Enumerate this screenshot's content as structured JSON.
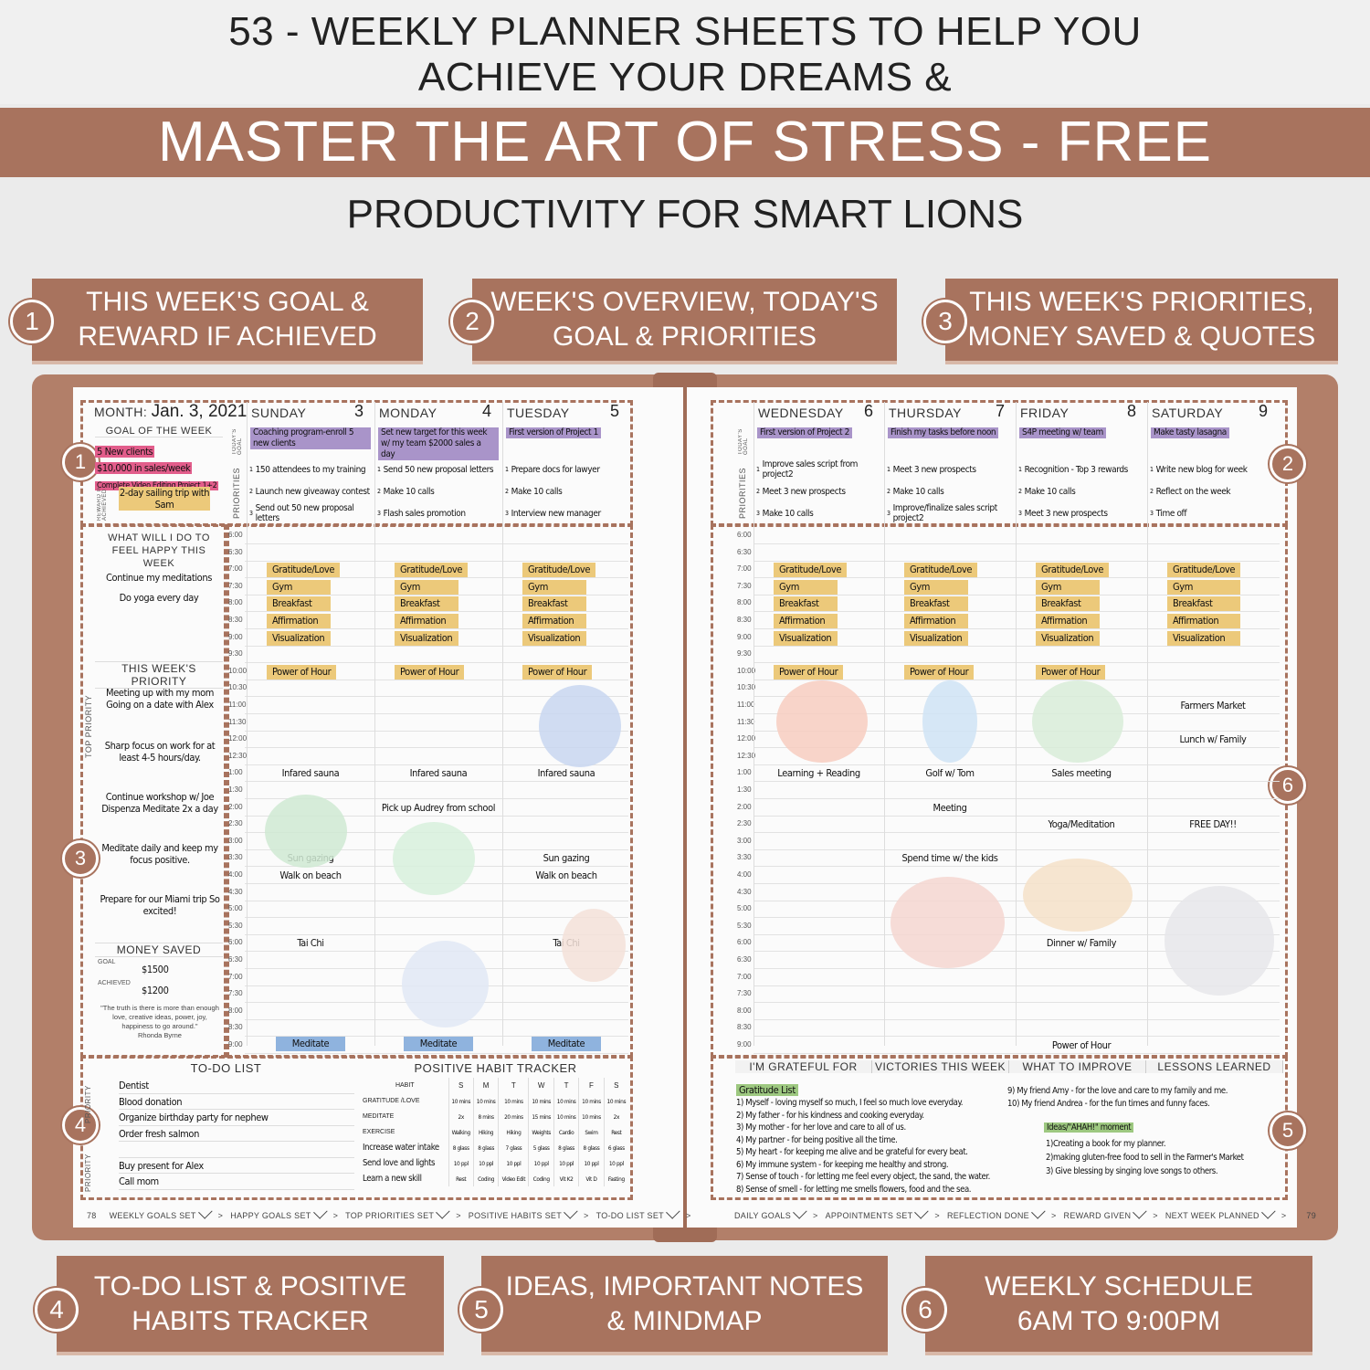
{
  "header": {
    "title_line1": "53 - WEEKLY PLANNER SHEETS TO HELP YOU",
    "title_line2": "ACHIEVE YOUR DREAMS &",
    "band": "MASTER THE ART OF STRESS - FREE",
    "subtitle": "PRODUCTIVITY FOR SMART LIONS"
  },
  "colors": {
    "accent": "#a8735e",
    "purple": "#a994c9",
    "yellow": "#ecc97a",
    "pink": "#e25d8b",
    "green": "#9dc880"
  },
  "callouts_top": [
    {
      "num": "1",
      "line1": "THIS WEEK'S GOAL &",
      "line2": "REWARD IF ACHIEVED"
    },
    {
      "num": "2",
      "line1": "WEEK'S OVERVIEW, TODAY'S",
      "line2": "GOAL & PRIORITIES"
    },
    {
      "num": "3",
      "line1": "THIS WEEK'S PRIORITIES,",
      "line2": "MONEY SAVED & QUOTES"
    }
  ],
  "callouts_bottom": [
    {
      "num": "4",
      "line1": "TO-DO LIST & POSITIVE",
      "line2": "HABITS TRACKER"
    },
    {
      "num": "5",
      "line1": "IDEAS, IMPORTANT NOTES",
      "line2": "& MINDMAP"
    },
    {
      "num": "6",
      "line1": "WEEKLY SCHEDULE",
      "line2": "6AM TO 9:00PM"
    }
  ],
  "page_markers": [
    "1",
    "2",
    "3",
    "4",
    "5",
    "6"
  ],
  "planner": {
    "month_label": "MONTH:",
    "month_value": "Jan. 3, 2021",
    "goal_title": "GOAL OF THE WEEK",
    "goals": [
      "5 New clients",
      "$10,000 in sales/week",
      "Complete Video Editing Project 1+2"
    ],
    "reward_label": "REWARD IF ACHIEVED",
    "reward": "2-day sailing trip with Sam",
    "todays_goal_label": "TODAY'S GOAL",
    "priorities_label": "PRIORITIES",
    "happy_title": "WHAT WILL I DO TO FEEL HAPPY THIS WEEK",
    "happy_items": [
      "Continue my meditations",
      "Do yoga every day"
    ],
    "priority_title": "THIS WEEK'S PRIORITY",
    "top_priority_label": "TOP PRIORITY",
    "priority_items": [
      "Meeting up with my mom Going on a date with Alex",
      "Sharp focus on work for at least 4-5 hours/day.",
      "Continue workshop w/ Joe Dispenza Meditate 2x a day",
      "Meditate daily and keep my focus positive.",
      "Prepare for our Miami trip So excited!"
    ],
    "money_title": "MONEY SAVED",
    "money_goal_label": "GOAL",
    "money_goal": "$1500",
    "money_achieved_label": "ACHIEVED",
    "money_achieved": "$1200",
    "quote": "\"The truth is there is more than enough love, creative ideas, power, joy, happiness to go around.\"",
    "quote_author": "Rhonda Byrne",
    "times": [
      "6:00",
      "6:30",
      "7:00",
      "7:30",
      "8:00",
      "8:30",
      "9:00",
      "9:30",
      "10:00",
      "10:30",
      "11:00",
      "11:30",
      "12:00",
      "12:30",
      "1:00",
      "1:30",
      "2:00",
      "2:30",
      "3:00",
      "3:30",
      "4:00",
      "4:30",
      "5:00",
      "5:30",
      "6:00",
      "6:30",
      "7:00",
      "7:30",
      "8:00",
      "8:30",
      "9:00"
    ],
    "days": [
      {
        "name": "SUNDAY",
        "date": "3",
        "goal": "Coaching program-enroll 5 new clients",
        "priorities": [
          "150 attendees to my training",
          "Launch new giveaway contest",
          "Send out 50 new proposal letters"
        ],
        "events": [
          {
            "t": 2,
            "text": "Gratitude/Love",
            "hl": true
          },
          {
            "t": 3,
            "text": "Gym",
            "hl": true
          },
          {
            "t": 4,
            "text": "Breakfast",
            "hl": true
          },
          {
            "t": 5,
            "text": "Affirmation",
            "hl": true
          },
          {
            "t": 6,
            "text": "Visualization",
            "hl": true
          },
          {
            "t": 8,
            "text": "Power of Hour",
            "hl": true
          },
          {
            "t": 14,
            "text": "Infared sauna"
          },
          {
            "t": 19,
            "text": "Sun gazing"
          },
          {
            "t": 20,
            "text": "Walk on beach"
          },
          {
            "t": 24,
            "text": "Tai Chi"
          },
          {
            "t": 30,
            "text": "Meditate",
            "blue": true
          }
        ]
      },
      {
        "name": "MONDAY",
        "date": "4",
        "goal": "Set new target for this week w/ my team $2000 sales a day",
        "priorities": [
          "Send 50 new proposal letters",
          "Make 10 calls",
          "Flash sales promotion"
        ],
        "events": [
          {
            "t": 2,
            "text": "Gratitude/Love",
            "hl": true
          },
          {
            "t": 3,
            "text": "Gym",
            "hl": true
          },
          {
            "t": 4,
            "text": "Breakfast",
            "hl": true
          },
          {
            "t": 5,
            "text": "Affirmation",
            "hl": true
          },
          {
            "t": 6,
            "text": "Visualization",
            "hl": true
          },
          {
            "t": 8,
            "text": "Power of Hour",
            "hl": true
          },
          {
            "t": 14,
            "text": "Infared sauna"
          },
          {
            "t": 16,
            "text": "Pick up Audrey from school"
          },
          {
            "t": 30,
            "text": "Meditate",
            "blue": true
          }
        ]
      },
      {
        "name": "TUESDAY",
        "date": "5",
        "goal": "First version of Project 1",
        "priorities": [
          "Prepare docs for lawyer",
          "Make 10 calls",
          "Interview new manager"
        ],
        "events": [
          {
            "t": 2,
            "text": "Gratitude/Love",
            "hl": true
          },
          {
            "t": 3,
            "text": "Gym",
            "hl": true
          },
          {
            "t": 4,
            "text": "Breakfast",
            "hl": true
          },
          {
            "t": 5,
            "text": "Affirmation",
            "hl": true
          },
          {
            "t": 6,
            "text": "Visualization",
            "hl": true
          },
          {
            "t": 8,
            "text": "Power of Hour",
            "hl": true
          },
          {
            "t": 14,
            "text": "Infared sauna"
          },
          {
            "t": 19,
            "text": "Sun gazing"
          },
          {
            "t": 20,
            "text": "Walk on beach"
          },
          {
            "t": 24,
            "text": "Tai Chi"
          },
          {
            "t": 30,
            "text": "Meditate",
            "blue": true
          }
        ]
      },
      {
        "name": "WEDNESDAY",
        "date": "6",
        "goal": "First version of Project 2",
        "priorities": [
          "Improve sales script from project2",
          "Meet 3 new prospects",
          "Make 10 calls"
        ],
        "events": [
          {
            "t": 2,
            "text": "Gratitude/Love",
            "hl": true
          },
          {
            "t": 3,
            "text": "Gym",
            "hl": true
          },
          {
            "t": 4,
            "text": "Breakfast",
            "hl": true
          },
          {
            "t": 5,
            "text": "Affirmation",
            "hl": true
          },
          {
            "t": 6,
            "text": "Visualization",
            "hl": true
          },
          {
            "t": 8,
            "text": "Power of Hour",
            "hl": true
          },
          {
            "t": 14,
            "text": "Learning + Reading"
          }
        ]
      },
      {
        "name": "THURSDAY",
        "date": "7",
        "goal": "Finish my tasks before noon",
        "priorities": [
          "Meet 3 new prospects",
          "Make 10 calls",
          "Improve/finalize sales script project2"
        ],
        "events": [
          {
            "t": 2,
            "text": "Gratitude/Love",
            "hl": true
          },
          {
            "t": 3,
            "text": "Gym",
            "hl": true
          },
          {
            "t": 4,
            "text": "Breakfast",
            "hl": true
          },
          {
            "t": 5,
            "text": "Affirmation",
            "hl": true
          },
          {
            "t": 6,
            "text": "Visualization",
            "hl": true
          },
          {
            "t": 8,
            "text": "Power of Hour",
            "hl": true
          },
          {
            "t": 14,
            "text": "Golf w/ Tom"
          },
          {
            "t": 16,
            "text": "Meeting"
          },
          {
            "t": 19,
            "text": "Spend time w/ the kids"
          }
        ]
      },
      {
        "name": "FRIDAY",
        "date": "8",
        "goal": "S4P meeting w/ team",
        "priorities": [
          "Recognition - Top 3 rewards",
          "Make 10 calls",
          "Meet 3 new prospects"
        ],
        "events": [
          {
            "t": 2,
            "text": "Gratitude/Love",
            "hl": true
          },
          {
            "t": 3,
            "text": "Gym",
            "hl": true
          },
          {
            "t": 4,
            "text": "Breakfast",
            "hl": true
          },
          {
            "t": 5,
            "text": "Affirmation",
            "hl": true
          },
          {
            "t": 6,
            "text": "Visualization",
            "hl": true
          },
          {
            "t": 8,
            "text": "Power of Hour",
            "hl": true
          },
          {
            "t": 14,
            "text": "Sales meeting"
          },
          {
            "t": 17,
            "text": "Yoga/Meditation"
          },
          {
            "t": 24,
            "text": "Dinner w/ Family"
          },
          {
            "t": 30,
            "text": "Power of Hour"
          }
        ]
      },
      {
        "name": "SATURDAY",
        "date": "9",
        "goal": "Make tasty lasagna",
        "priorities": [
          "Write new blog for week",
          "Reflect on the week",
          "Time off"
        ],
        "events": [
          {
            "t": 2,
            "text": "Gratitude/Love",
            "hl": true
          },
          {
            "t": 3,
            "text": "Gym",
            "hl": true
          },
          {
            "t": 4,
            "text": "Breakfast",
            "hl": true
          },
          {
            "t": 5,
            "text": "Affirmation",
            "hl": true
          },
          {
            "t": 6,
            "text": "Visualization",
            "hl": true
          },
          {
            "t": 10,
            "text": "Farmers Market"
          },
          {
            "t": 12,
            "text": "Lunch w/ Family"
          },
          {
            "t": 17,
            "text": "FREE DAY!!"
          }
        ]
      }
    ],
    "todo_title": "TO-DO LIST",
    "todo_priority_label": "PRIORITY",
    "todo_items": [
      "Dentist",
      "Blood donation",
      "Organize birthday party for nephew",
      "Order fresh salmon",
      "",
      "Buy present for Alex",
      "Call mom"
    ],
    "habit_title": "POSITIVE HABIT TRACKER",
    "habit_header": [
      "HABIT",
      "S",
      "M",
      "T",
      "W",
      "T",
      "F",
      "S"
    ],
    "habits": [
      {
        "name": "GRATITUDE /LOVE",
        "values": [
          "10 mins",
          "10 mins",
          "10 mins",
          "10 mins",
          "10 mins",
          "10 mins",
          "10 mins"
        ]
      },
      {
        "name": "MEDITATE",
        "values": [
          "2x",
          "8 mins",
          "20 mins",
          "15 mins",
          "10 mins",
          "10 mins",
          "2x"
        ]
      },
      {
        "name": "EXERCISE",
        "values": [
          "Walking",
          "Hiking",
          "Hiking",
          "Weights",
          "Cardio",
          "Swim",
          "Rest"
        ]
      },
      {
        "name": "Increase water intake",
        "values": [
          "8 glass",
          "8 glass",
          "7 glass",
          "5 glass",
          "8 glass",
          "8 glass",
          "6 glass"
        ]
      },
      {
        "name": "Send love and lights",
        "values": [
          "10 ppl",
          "10 ppl",
          "10 ppl",
          "10 ppl",
          "10 ppl",
          "10 ppl",
          "10 ppl"
        ]
      },
      {
        "name": "Learn a new skill",
        "values": [
          "Rest",
          "Coding",
          "Video Edit",
          "Coding",
          "Vit K2",
          "Vit D",
          "Fasting"
        ]
      }
    ],
    "reflect_headers": [
      "I'M GRATEFUL FOR",
      "VICTORIES THIS WEEK",
      "WHAT TO IMPROVE",
      "LESSONS LEARNED"
    ],
    "gratitude_tag": "Gratitude List",
    "gratitude_items": [
      "1) Myself - loving myself so much, I feel so much love everyday.",
      "2) My father - for his kindness and cooking everyday.",
      "3) My mother - for her love and care to all of us.",
      "4) My partner - for being positive all the time.",
      "5) My heart - for keeping me alive and be grateful for every beat.",
      "6) My immune system - for keeping me healthy and strong.",
      "7) Sense of touch - for letting me feel every object, the sand, the water.",
      "8) Sense of smell - for letting me smells flowers, food and the sea."
    ],
    "gratitude_items_2": [
      "9) My friend Amy - for the love and care to my family and me.",
      "10) My friend Andrea - for the fun times and funny faces."
    ],
    "ideas_tag": "Ideas/\"AHAH!\" moment",
    "ideas_items": [
      "1)Creating a book for my planner.",
      "2)making gluten-free food to sell in the Farmer's Market",
      "3) Give blessing by singing love songs to others."
    ],
    "footer_left_page": "78",
    "footer_left": [
      "WEEKLY GOALS SET",
      "HAPPY GOALS SET",
      "TOP PRIORITIES SET",
      "POSITIVE HABITS SET",
      "TO-DO LIST SET"
    ],
    "footer_right": [
      "DAILY GOALS",
      "APPOINTMENTS SET",
      "REFLECTION DONE",
      "REWARD GIVEN",
      "NEXT WEEK PLANNED"
    ],
    "footer_right_page": "79"
  }
}
